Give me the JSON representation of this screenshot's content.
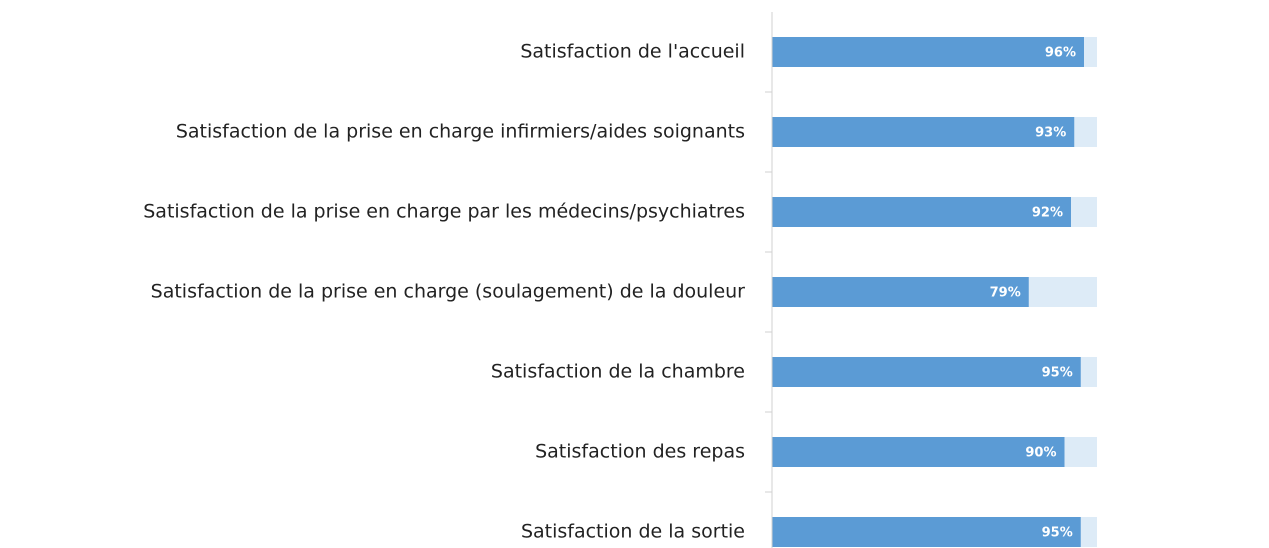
{
  "chart_data": {
    "type": "bar",
    "orientation": "horizontal",
    "categories": [
      "Satisfaction de l'accueil",
      "Satisfaction de la prise en charge infirmiers/aides soignants",
      "Satisfaction de la prise en charge par les médecins/psychiatres",
      "Satisfaction de la prise en charge (soulagement) de la douleur",
      "Satisfaction de la chambre",
      "Satisfaction des repas",
      "Satisfaction de la sortie"
    ],
    "values": [
      96,
      93,
      92,
      79,
      95,
      90,
      95
    ],
    "value_labels": [
      "96%",
      "93%",
      "92%",
      "79%",
      "95%",
      "90%",
      "95%"
    ],
    "color": "#5b9bd5",
    "track_color": "#ddebf7",
    "xlim": [
      0,
      100
    ]
  }
}
